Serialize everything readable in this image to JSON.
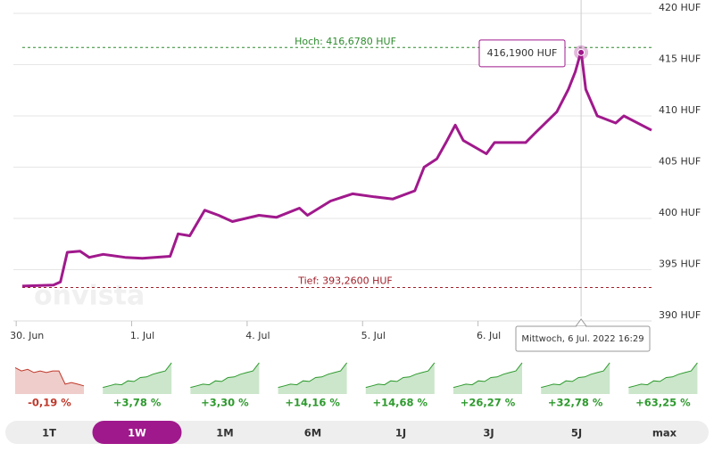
{
  "chart_data": {
    "type": "line",
    "watermark": "onvista",
    "x": [
      -0.04,
      0.23,
      0.29,
      0.35,
      0.46,
      0.54,
      0.66,
      0.85,
      1.0,
      1.24,
      1.31,
      1.41,
      1.54,
      1.66,
      1.78,
      2.01,
      2.16,
      2.36,
      2.43,
      2.63,
      2.82,
      3.01,
      3.17,
      3.36,
      3.44,
      3.55,
      3.63,
      3.71,
      3.78,
      3.98,
      4.05,
      4.32,
      4.4,
      4.59,
      4.69,
      4.75,
      4.8,
      4.84,
      4.94,
      5.1,
      5.17,
      5.41
    ],
    "series": [
      {
        "color": "#a0198c",
        "values": [
          393.4,
          393.5,
          393.8,
          396.7,
          396.8,
          396.2,
          396.5,
          396.2,
          396.1,
          396.3,
          398.5,
          398.3,
          400.8,
          400.3,
          399.7,
          400.3,
          400.1,
          401.0,
          400.3,
          401.7,
          402.4,
          402.1,
          401.9,
          402.7,
          405.0,
          405.8,
          407.4,
          409.1,
          407.6,
          406.3,
          407.4,
          407.4,
          408.3,
          410.4,
          412.6,
          414.3,
          416.3,
          412.6,
          410.0,
          409.3,
          410.0,
          408.6
        ]
      }
    ],
    "xlim": [
      -0.04,
      5.41
    ],
    "xticks": [
      {
        "value": 0,
        "label": "30. Jun"
      },
      {
        "value": 1,
        "label": "1. Jul"
      },
      {
        "value": 2,
        "label": "4. Jul"
      },
      {
        "value": 3,
        "label": "5. Jul"
      },
      {
        "value": 4,
        "label": "6. Jul"
      }
    ],
    "ylim": [
      389.5,
      421
    ],
    "yticks": [
      {
        "value": 390,
        "label": "390 HUF"
      },
      {
        "value": 395,
        "label": "395 HUF"
      },
      {
        "value": 400,
        "label": "400 HUF"
      },
      {
        "value": 405,
        "label": "405 HUF"
      },
      {
        "value": 410,
        "label": "410 HUF"
      },
      {
        "value": 415,
        "label": "415 HUF"
      },
      {
        "value": 420,
        "label": "420 HUF"
      }
    ],
    "grid": true,
    "high": {
      "value": 416.678,
      "label": "Hoch: 416,6780 HUF",
      "color": "#2e8b2e"
    },
    "low": {
      "value": 393.26,
      "label": "Tief: 393,2600 HUF",
      "color": "#a0202a"
    },
    "tooltip": {
      "x": 4.8,
      "value": 416.19,
      "label": "416,1900 HUF",
      "date": "Mittwoch, 6 Jul. 2022 16:29"
    }
  },
  "performance": [
    {
      "label": "-0,19 %",
      "color": "#c0392b"
    },
    {
      "label": "+3,78 %",
      "color": "#2e9a2e"
    },
    {
      "label": "+3,30 %",
      "color": "#2e9a2e"
    },
    {
      "label": "+14,16 %",
      "color": "#2e9a2e"
    },
    {
      "label": "+14,68 %",
      "color": "#2e9a2e"
    },
    {
      "label": "+26,27 %",
      "color": "#2e9a2e"
    },
    {
      "label": "+32,78 %",
      "color": "#2e9a2e"
    },
    {
      "label": "+63,25 %",
      "color": "#2e9a2e"
    }
  ],
  "tabs": [
    {
      "label": "1T",
      "active": false
    },
    {
      "label": "1W",
      "active": true
    },
    {
      "label": "1M",
      "active": false
    },
    {
      "label": "6M",
      "active": false
    },
    {
      "label": "1J",
      "active": false
    },
    {
      "label": "3J",
      "active": false
    },
    {
      "label": "5J",
      "active": false
    },
    {
      "label": "max",
      "active": false
    }
  ]
}
